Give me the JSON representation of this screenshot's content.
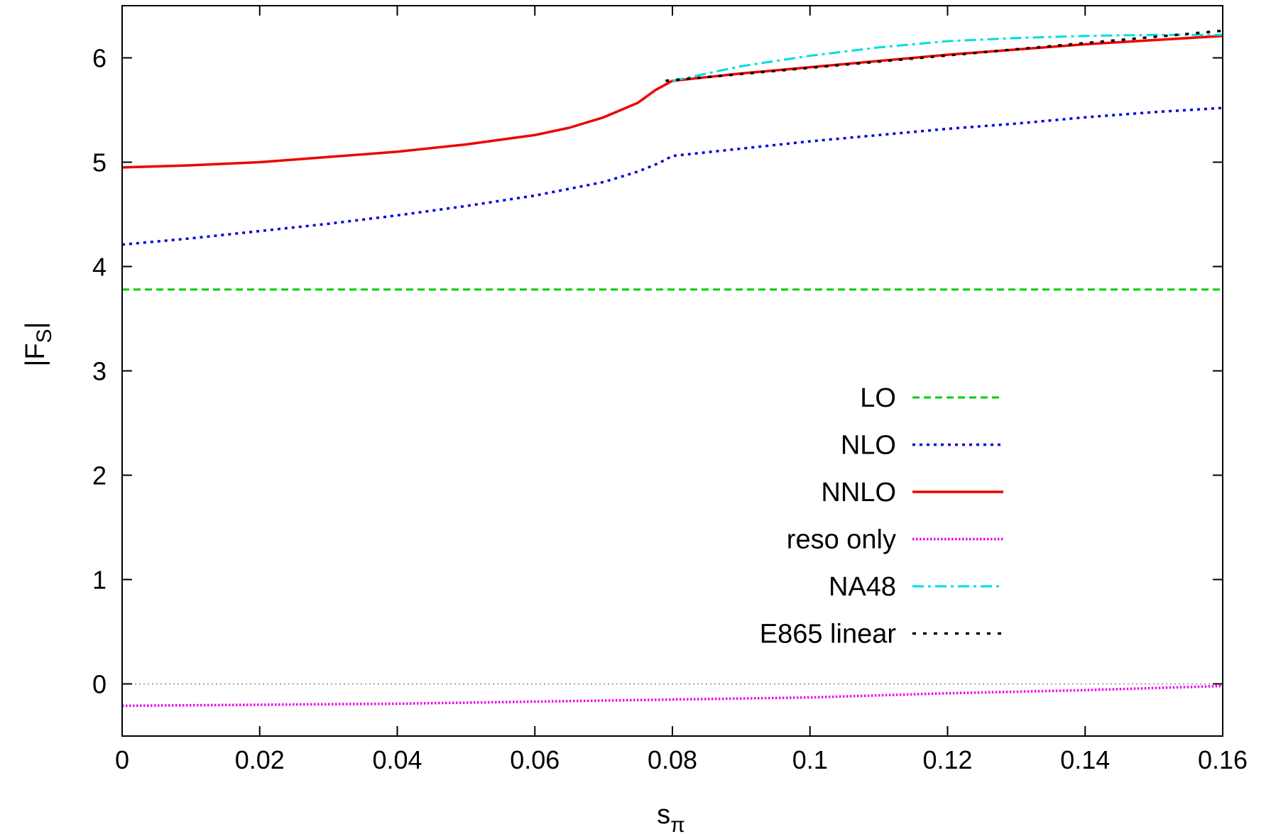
{
  "chart_data": {
    "type": "line",
    "title": "",
    "xlabel_base": "s",
    "xlabel_sub": "π",
    "ylabel_pre": "|F",
    "ylabel_sub": "S",
    "ylabel_post": "|",
    "xlim": [
      0,
      0.16
    ],
    "ylim": [
      -0.5,
      6.5
    ],
    "x_ticks": [
      0,
      0.02,
      0.04,
      0.06,
      0.08,
      0.1,
      0.12,
      0.14,
      0.16
    ],
    "x_tick_labels": [
      "0",
      "0.02",
      "0.04",
      "0.06",
      "0.08",
      "0.1",
      "0.12",
      "0.14",
      "0.16"
    ],
    "y_ticks": [
      0,
      1,
      2,
      3,
      4,
      5,
      6
    ],
    "y_tick_labels": [
      "0",
      "1",
      "2",
      "3",
      "4",
      "5",
      "6"
    ],
    "zero_line": true,
    "grid": false,
    "legend_position": "bottom-right",
    "series": [
      {
        "name": "LO",
        "color": "#00cc00",
        "dash": "dashed",
        "x": [
          0,
          0.16
        ],
        "y": [
          3.78,
          3.78
        ]
      },
      {
        "name": "NLO",
        "color": "#0000dd",
        "dash": "dotted",
        "x": [
          0,
          0.01,
          0.02,
          0.03,
          0.04,
          0.05,
          0.06,
          0.07,
          0.075,
          0.078,
          0.08,
          0.09,
          0.1,
          0.11,
          0.12,
          0.13,
          0.14,
          0.15,
          0.16
        ],
        "y": [
          4.21,
          4.27,
          4.34,
          4.41,
          4.49,
          4.58,
          4.68,
          4.81,
          4.91,
          4.99,
          5.06,
          5.13,
          5.2,
          5.26,
          5.32,
          5.37,
          5.43,
          5.48,
          5.52
        ]
      },
      {
        "name": "NNLO",
        "color": "#ee0000",
        "dash": "solid",
        "x": [
          0,
          0.01,
          0.02,
          0.03,
          0.04,
          0.05,
          0.06,
          0.065,
          0.07,
          0.075,
          0.0775,
          0.08,
          0.09,
          0.1,
          0.11,
          0.12,
          0.13,
          0.14,
          0.15,
          0.16
        ],
        "y": [
          4.95,
          4.97,
          5.0,
          5.05,
          5.1,
          5.17,
          5.26,
          5.33,
          5.43,
          5.57,
          5.69,
          5.78,
          5.85,
          5.91,
          5.97,
          6.03,
          6.08,
          6.13,
          6.17,
          6.21
        ]
      },
      {
        "name": "reso only",
        "color": "#ee00ee",
        "dash": "dotted-fine",
        "x": [
          0,
          0.02,
          0.04,
          0.06,
          0.08,
          0.1,
          0.12,
          0.14,
          0.16
        ],
        "y": [
          -0.21,
          -0.2,
          -0.19,
          -0.17,
          -0.15,
          -0.13,
          -0.09,
          -0.06,
          -0.02
        ]
      },
      {
        "name": "NA48",
        "color": "#00dddd",
        "dash": "dashdot",
        "x": [
          0.08,
          0.09,
          0.1,
          0.11,
          0.12,
          0.13,
          0.14,
          0.15,
          0.16
        ],
        "y": [
          5.78,
          5.92,
          6.02,
          6.1,
          6.16,
          6.19,
          6.21,
          6.22,
          6.22
        ]
      },
      {
        "name": "E865 linear",
        "color": "#000000",
        "dash": "sparse-dotted",
        "x": [
          0.079,
          0.16
        ],
        "y": [
          5.78,
          6.26
        ]
      }
    ]
  }
}
